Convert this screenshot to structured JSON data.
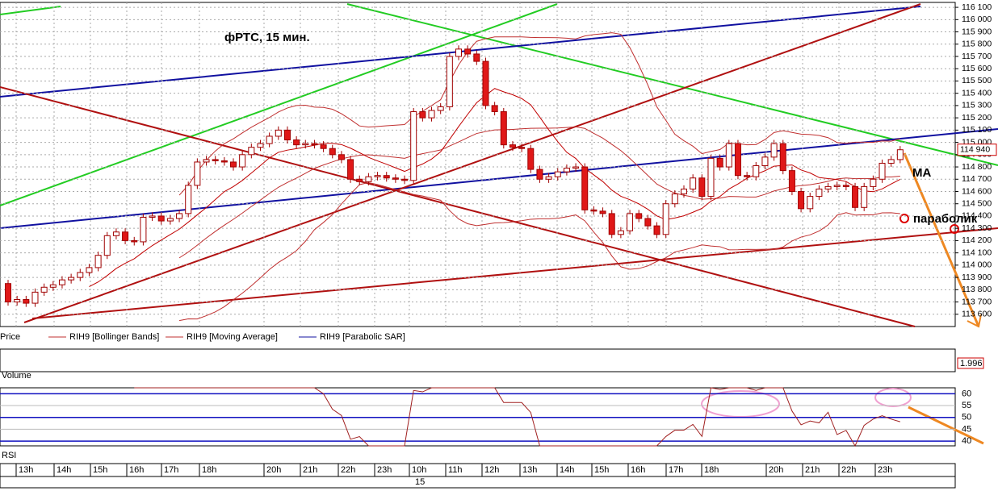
{
  "chart_data": {
    "type": "candlestick",
    "title": "фРТС,  15 мин.",
    "open": [
      113850,
      113700,
      113720,
      113690,
      113780,
      113820,
      113840,
      113880,
      113900,
      113940,
      113980,
      114080,
      114240,
      114270,
      114200,
      114190,
      114390,
      114400,
      114360,
      114380,
      114420,
      114650,
      114840,
      114860,
      114850,
      114840,
      114800,
      114900,
      114960,
      114990,
      115050,
      115100,
      115020,
      114980,
      114990,
      114980,
      114950,
      114900,
      114860,
      114700,
      114680,
      114720,
      114730,
      114710,
      114700,
      114690,
      115250,
      115200,
      115260,
      115290,
      115700,
      115760,
      115720,
      115660,
      115300,
      115250,
      114980,
      114960,
      114950,
      114780,
      114700,
      114720,
      114760,
      114790,
      114800,
      114450,
      114440,
      114420,
      114250,
      114280,
      114420,
      114380,
      114320,
      114250,
      114500,
      114580,
      114620,
      114710,
      114560,
      114870,
      114800,
      114990,
      114730,
      114720,
      114810,
      114880,
      114990,
      114770,
      114600,
      114460,
      114560,
      114620,
      114640,
      114650,
      114640,
      114470,
      114640,
      114700,
      114830,
      114860
    ],
    "high": [
      113880,
      113750,
      113750,
      113810,
      113850,
      113870,
      113910,
      113930,
      113970,
      114010,
      114110,
      114270,
      114300,
      114300,
      114230,
      114420,
      114430,
      114430,
      114410,
      114450,
      114680,
      114870,
      114890,
      114890,
      114880,
      114870,
      114930,
      114990,
      115020,
      115080,
      115130,
      115130,
      115050,
      115020,
      115020,
      115010,
      114980,
      114930,
      114890,
      114730,
      114750,
      114760,
      114760,
      114740,
      114730,
      115280,
      115280,
      115290,
      115320,
      115730,
      115790,
      115790,
      115750,
      115690,
      115330,
      115280,
      115010,
      114990,
      114980,
      114810,
      114750,
      114790,
      114820,
      114830,
      114830,
      114480,
      114470,
      114450,
      114310,
      114450,
      114450,
      114410,
      114350,
      114530,
      114610,
      114650,
      114740,
      114740,
      114900,
      114900,
      115020,
      115020,
      114760,
      114840,
      114910,
      115020,
      115020,
      114800,
      114630,
      114590,
      114650,
      114670,
      114680,
      114680,
      114670,
      114670,
      114730,
      114860,
      114890,
      114970
    ],
    "low": [
      113670,
      113670,
      113660,
      113660,
      113750,
      113790,
      113810,
      113850,
      113870,
      113910,
      113950,
      114050,
      114210,
      114170,
      114160,
      114160,
      114360,
      114330,
      114330,
      114350,
      114390,
      114620,
      114810,
      114820,
      114810,
      114770,
      114770,
      114870,
      114930,
      114960,
      115020,
      114990,
      114950,
      114950,
      114950,
      114920,
      114870,
      114830,
      114670,
      114650,
      114650,
      114690,
      114680,
      114670,
      114660,
      114660,
      115170,
      115170,
      115230,
      115260,
      115670,
      115690,
      115630,
      115270,
      115220,
      114950,
      114930,
      114920,
      114750,
      114670,
      114670,
      114690,
      114730,
      114760,
      114420,
      114410,
      114390,
      114220,
      114220,
      114250,
      114350,
      114290,
      114220,
      114220,
      114470,
      114550,
      114590,
      114530,
      114530,
      114770,
      114770,
      114700,
      114690,
      114690,
      114780,
      114850,
      114740,
      114570,
      114430,
      114430,
      114530,
      114590,
      114610,
      114610,
      114440,
      114440,
      114610,
      114670,
      114800,
      114830
    ],
    "close": [
      113700,
      113720,
      113690,
      113780,
      113820,
      113840,
      113880,
      113900,
      113940,
      113980,
      114080,
      114240,
      114270,
      114200,
      114190,
      114390,
      114400,
      114360,
      114380,
      114420,
      114650,
      114840,
      114860,
      114850,
      114840,
      114800,
      114900,
      114960,
      114990,
      115050,
      115100,
      115020,
      114980,
      114990,
      114980,
      114950,
      114900,
      114860,
      114700,
      114680,
      114720,
      114730,
      114710,
      114700,
      114690,
      115250,
      115200,
      115260,
      115290,
      115700,
      115760,
      115720,
      115660,
      115300,
      115250,
      114980,
      114960,
      114950,
      114780,
      114700,
      114720,
      114760,
      114790,
      114800,
      114450,
      114440,
      114420,
      114250,
      114280,
      114420,
      114380,
      114320,
      114250,
      114500,
      114580,
      114620,
      114710,
      114560,
      114870,
      114800,
      114990,
      114730,
      114720,
      114810,
      114880,
      114990,
      114770,
      114600,
      114460,
      114560,
      114620,
      114640,
      114650,
      114640,
      114470,
      114640,
      114700,
      114830,
      114860,
      114940
    ],
    "ylim": [
      113500,
      116140
    ],
    "yticks": [
      {
        "value": 113600,
        "label": "113 600"
      },
      {
        "value": 113700,
        "label": "113 700"
      },
      {
        "value": 113800,
        "label": "113 800"
      },
      {
        "value": 113900,
        "label": "113 900"
      },
      {
        "value": 114000,
        "label": "114 000"
      },
      {
        "value": 114100,
        "label": "114 100"
      },
      {
        "value": 114200,
        "label": "114 200"
      },
      {
        "value": 114300,
        "label": "114 300"
      },
      {
        "value": 114400,
        "label": "114 400"
      },
      {
        "value": 114500,
        "label": "114 500"
      },
      {
        "value": 114600,
        "label": "114 600"
      },
      {
        "value": 114700,
        "label": "114 700"
      },
      {
        "value": 114800,
        "label": "114 800"
      },
      {
        "value": 114900,
        "label": "114 900"
      },
      {
        "value": 115000,
        "label": "115 000"
      },
      {
        "value": 115100,
        "label": "115 100"
      },
      {
        "value": 115200,
        "label": "115 200"
      },
      {
        "value": 115300,
        "label": "115 300"
      },
      {
        "value": 115400,
        "label": "115 400"
      },
      {
        "value": 115500,
        "label": "115 500"
      },
      {
        "value": 115600,
        "label": "115 600"
      },
      {
        "value": 115700,
        "label": "115 700"
      },
      {
        "value": 115800,
        "label": "115 800"
      },
      {
        "value": 115900,
        "label": "115 900"
      },
      {
        "value": 116000,
        "label": "116 000"
      },
      {
        "value": 116100,
        "label": "116 100"
      }
    ],
    "grid": true,
    "last_price": {
      "value": 114940,
      "label": "114 940"
    },
    "up_color": "#ffffff",
    "down_color": "#e01818",
    "edge_color": "#a00000",
    "ma_color": "#c00000",
    "bb_color": "#c03030",
    "rsi_color": "#a02020",
    "legend": [
      "Price",
      "RIH9 [Bollinger Bands]",
      "RIH9 [Moving Average]",
      "RIH9 [Parabolic SAR]"
    ],
    "annotations": [
      "MA",
      "параболик"
    ],
    "x_labels": [
      "13h",
      "14h",
      "15h",
      "16h",
      "17h",
      "18h",
      "20h",
      "21h",
      "22h",
      "23h",
      "10h",
      "11h",
      "12h",
      "13h",
      "14h",
      "15h",
      "16h",
      "17h",
      "18h",
      "20h",
      "21h",
      "22h",
      "23h"
    ],
    "date_label": "15",
    "volume": {
      "label": "Volume",
      "last": 1.996
    },
    "rsi": {
      "label": "RSI",
      "ylim": [
        38,
        62.5
      ],
      "yticks": [
        40,
        45,
        50,
        55,
        60
      ]
    }
  }
}
